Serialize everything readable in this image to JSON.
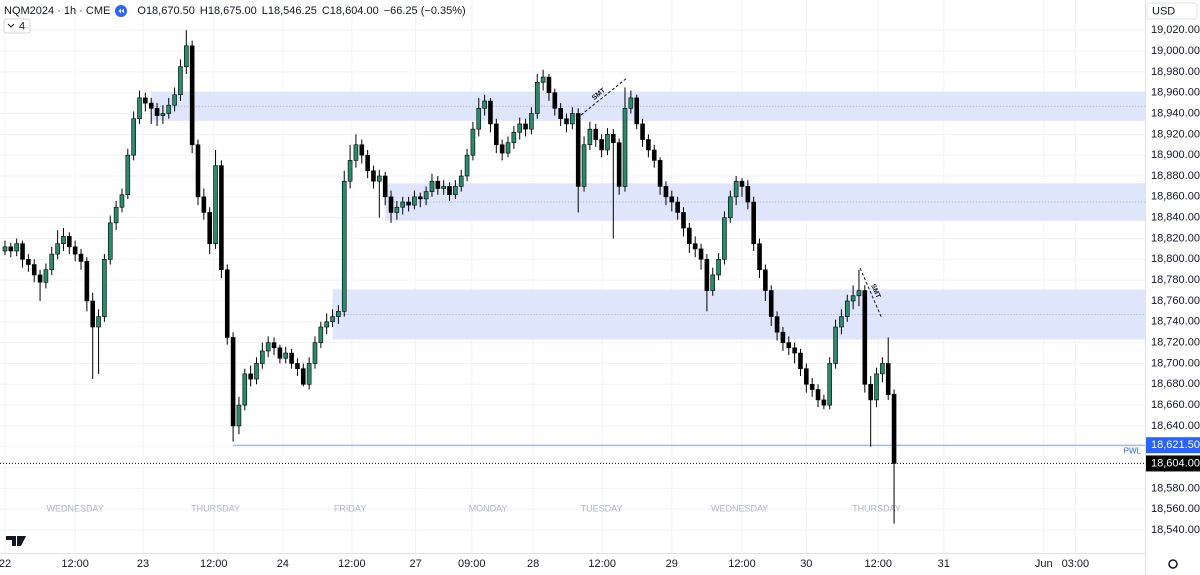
{
  "header": {
    "symbol": "NQM2024 · 1h · CME",
    "ohlc": [
      {
        "key": "O",
        "value": "18,670.50"
      },
      {
        "key": "H",
        "value": "18,675.00"
      },
      {
        "key": "L",
        "value": "18,546.25"
      },
      {
        "key": "C",
        "value": "18,604.00"
      }
    ],
    "change": "−66.25 (−0.35%)",
    "indicator_count": "4",
    "currency": "USD"
  },
  "chart_data": {
    "type": "candlestick",
    "up_color": "#2b8a6c",
    "down_color": "#000000",
    "grid": true,
    "x": [
      0,
      1,
      2,
      3,
      4,
      5,
      6,
      7,
      8,
      9,
      10,
      11,
      12,
      13,
      14,
      15,
      16,
      17,
      18,
      19,
      20,
      21,
      22,
      23,
      24,
      25,
      26,
      27,
      28,
      29,
      30,
      31,
      32,
      33,
      34,
      35,
      36,
      37,
      38,
      39,
      40,
      41,
      42,
      43,
      44,
      45,
      46,
      47,
      48,
      49,
      50,
      51,
      52,
      53,
      54,
      55,
      56,
      57,
      58,
      59,
      60,
      61,
      62,
      63,
      64,
      65,
      66,
      67,
      68,
      69,
      70,
      71,
      72,
      73,
      74,
      75,
      76,
      77,
      78,
      79,
      80,
      81,
      82,
      83,
      84,
      85,
      86,
      87,
      88,
      89,
      90,
      91,
      92,
      93,
      94,
      95,
      96,
      97,
      98,
      99,
      100,
      101,
      102,
      103,
      104,
      105,
      106,
      107,
      108,
      109,
      110,
      111,
      112,
      113,
      114,
      115,
      116,
      117,
      118,
      119,
      120,
      121,
      122,
      123,
      124,
      125,
      126,
      127,
      128,
      129,
      130,
      131,
      132,
      133,
      134,
      135,
      136,
      137,
      138,
      139,
      140,
      141,
      142,
      143,
      144,
      145,
      146,
      147,
      148,
      149,
      150,
      151,
      152
    ],
    "open": [
      18808,
      18812,
      18808,
      18815,
      18800,
      18795,
      18785,
      18778,
      18790,
      18805,
      18815,
      18822,
      18812,
      18805,
      18798,
      18760,
      18735,
      18745,
      18800,
      18835,
      18850,
      18862,
      18900,
      18935,
      18955,
      18950,
      18945,
      18938,
      18940,
      18948,
      18958,
      18985,
      19005,
      18910,
      18860,
      18845,
      18815,
      18890,
      18790,
      18725,
      18640,
      18660,
      18690,
      18685,
      18700,
      18712,
      18720,
      18715,
      18705,
      18710,
      18700,
      18695,
      18680,
      18700,
      18720,
      18735,
      18740,
      18745,
      18750,
      18875,
      18895,
      18910,
      18900,
      18885,
      18875,
      18880,
      18860,
      18845,
      18850,
      18855,
      18852,
      18860,
      18858,
      18865,
      18875,
      18868,
      18870,
      18862,
      18870,
      18880,
      18900,
      18925,
      18945,
      18952,
      18930,
      18910,
      18902,
      18912,
      18922,
      18930,
      18925,
      18940,
      18970,
      18975,
      18960,
      18945,
      18935,
      18930,
      18940,
      18870,
      18910,
      18925,
      18915,
      18905,
      18920,
      18912,
      18870,
      18945,
      18955,
      18930,
      18915,
      18905,
      18895,
      18870,
      18860,
      18855,
      18845,
      18830,
      18815,
      18810,
      18800,
      18770,
      18785,
      18800,
      18840,
      18860,
      18875,
      18870,
      18855,
      18815,
      18790,
      18770,
      18745,
      18730,
      18720,
      18715,
      18710,
      18695,
      18680,
      18675,
      18665,
      18660,
      18700,
      18735,
      18745,
      18760,
      18765,
      18770,
      18680,
      18665,
      18690,
      18700,
      18670.5
    ],
    "high": [
      18818,
      18816,
      18820,
      18818,
      18805,
      18800,
      18790,
      18796,
      18812,
      18828,
      18830,
      18826,
      18818,
      18810,
      18802,
      18768,
      18752,
      18805,
      18842,
      18856,
      18868,
      18906,
      18942,
      18962,
      18960,
      18955,
      18950,
      18948,
      18955,
      18965,
      18992,
      19020,
      19010,
      18915,
      18868,
      18850,
      18905,
      18895,
      18795,
      18730,
      18668,
      18695,
      18698,
      18706,
      18720,
      18726,
      18725,
      18718,
      18716,
      18714,
      18705,
      18700,
      18706,
      18726,
      18740,
      18748,
      18752,
      18756,
      18885,
      18910,
      18920,
      18915,
      18905,
      18890,
      18886,
      18884,
      18866,
      18856,
      18860,
      18860,
      18866,
      18864,
      18870,
      18882,
      18880,
      18876,
      18874,
      18876,
      18886,
      18906,
      18932,
      18955,
      18958,
      18955,
      18935,
      18915,
      18918,
      18928,
      18936,
      18935,
      18946,
      18978,
      18982,
      18978,
      18964,
      18950,
      18940,
      18946,
      18945,
      18918,
      18932,
      18930,
      18920,
      18926,
      18925,
      18916,
      18965,
      18962,
      18958,
      18935,
      18920,
      18910,
      18898,
      18875,
      18866,
      18860,
      18850,
      18835,
      18822,
      18815,
      18805,
      18792,
      18806,
      18846,
      18866,
      18880,
      18878,
      18876,
      18860,
      18820,
      18795,
      18775,
      18750,
      18735,
      18726,
      18720,
      18714,
      18700,
      18686,
      18680,
      18670,
      18706,
      18742,
      18752,
      18766,
      18775,
      18790,
      18775,
      18688,
      18696,
      18706,
      18725,
      18675
    ],
    "low": [
      18804,
      18802,
      18803,
      18792,
      18788,
      18778,
      18760,
      18772,
      18785,
      18800,
      18808,
      18805,
      18798,
      18790,
      18750,
      18685,
      18690,
      18740,
      18795,
      18828,
      18845,
      18858,
      18895,
      18930,
      18942,
      18930,
      18928,
      18930,
      18935,
      18942,
      18952,
      18978,
      18902,
      18852,
      18838,
      18805,
      18810,
      18782,
      18718,
      18625,
      18632,
      18655,
      18678,
      18680,
      18695,
      18706,
      18708,
      18700,
      18700,
      18695,
      18688,
      18678,
      18675,
      18695,
      18715,
      18728,
      18735,
      18738,
      18745,
      18868,
      18888,
      18892,
      18878,
      18868,
      18840,
      18852,
      18835,
      18838,
      18843,
      18846,
      18848,
      18850,
      18852,
      18860,
      18862,
      18862,
      18856,
      18858,
      18865,
      18875,
      18895,
      18918,
      18938,
      18922,
      18902,
      18895,
      18898,
      18906,
      18915,
      18918,
      18920,
      18935,
      18962,
      18952,
      18938,
      18928,
      18922,
      18925,
      18845,
      18865,
      18905,
      18908,
      18898,
      18900,
      18820,
      18862,
      18865,
      18940,
      18925,
      18908,
      18898,
      18888,
      18862,
      18852,
      18846,
      18838,
      18822,
      18806,
      18802,
      18790,
      18750,
      18765,
      18780,
      18795,
      18835,
      18852,
      18860,
      18848,
      18808,
      18782,
      18760,
      18736,
      18722,
      18712,
      18708,
      18700,
      18688,
      18672,
      18668,
      18658,
      18656,
      18656,
      18695,
      18728,
      18740,
      18752,
      18755,
      18672,
      18620,
      18658,
      18682,
      18665,
      18546.25
    ],
    "close": [
      18812,
      18808,
      18815,
      18800,
      18795,
      18785,
      18778,
      18790,
      18805,
      18815,
      18822,
      18812,
      18805,
      18798,
      18760,
      18735,
      18745,
      18800,
      18835,
      18850,
      18862,
      18900,
      18935,
      18955,
      18950,
      18945,
      18938,
      18940,
      18948,
      18958,
      18985,
      19005,
      18910,
      18860,
      18845,
      18815,
      18890,
      18790,
      18725,
      18640,
      18660,
      18690,
      18685,
      18700,
      18712,
      18720,
      18715,
      18705,
      18710,
      18700,
      18695,
      18680,
      18700,
      18720,
      18735,
      18740,
      18745,
      18750,
      18875,
      18895,
      18910,
      18900,
      18885,
      18875,
      18880,
      18860,
      18845,
      18850,
      18855,
      18852,
      18860,
      18858,
      18865,
      18875,
      18868,
      18870,
      18862,
      18870,
      18880,
      18900,
      18925,
      18945,
      18952,
      18930,
      18910,
      18902,
      18912,
      18922,
      18930,
      18925,
      18940,
      18970,
      18975,
      18960,
      18945,
      18935,
      18930,
      18940,
      18870,
      18910,
      18925,
      18915,
      18905,
      18920,
      18912,
      18870,
      18945,
      18955,
      18930,
      18915,
      18905,
      18895,
      18870,
      18860,
      18855,
      18845,
      18830,
      18815,
      18810,
      18800,
      18770,
      18785,
      18800,
      18840,
      18860,
      18875,
      18870,
      18855,
      18815,
      18790,
      18770,
      18745,
      18730,
      18720,
      18715,
      18710,
      18695,
      18680,
      18675,
      18665,
      18660,
      18700,
      18735,
      18745,
      18760,
      18765,
      18770,
      18680,
      18665,
      18690,
      18700,
      18670,
      18604
    ],
    "xlim": [
      -0.85,
      194.9
    ],
    "ylim": [
      18518,
      19049
    ],
    "xticks": [
      {
        "value": 0,
        "label": "22"
      },
      {
        "value": 12,
        "label": "12:00"
      },
      {
        "value": 23.6,
        "label": "23"
      },
      {
        "value": 35.7,
        "label": "12:00"
      },
      {
        "value": 47.5,
        "label": "24"
      },
      {
        "value": 59.3,
        "label": "12:00"
      },
      {
        "value": 70.2,
        "label": "27"
      },
      {
        "value": 79.8,
        "label": "09:00"
      },
      {
        "value": 90.3,
        "label": "28"
      },
      {
        "value": 102.1,
        "label": "12:00"
      },
      {
        "value": 114,
        "label": "29"
      },
      {
        "value": 126,
        "label": "12:00"
      },
      {
        "value": 137,
        "label": "30"
      },
      {
        "value": 149.3,
        "label": "12:00"
      },
      {
        "value": 160.5,
        "label": "31"
      },
      {
        "value": 177.6,
        "label": "Jun"
      },
      {
        "value": 183,
        "label": "03:00"
      }
    ],
    "yticks": [
      {
        "value": 18540,
        "label": "18,540.00"
      },
      {
        "value": 18560,
        "label": "18,560.00"
      },
      {
        "value": 18580,
        "label": "18,580.00"
      },
      {
        "value": 18600,
        "label": "18,600.00"
      },
      {
        "value": 18620,
        "label": "18,620.00"
      },
      {
        "value": 18640,
        "label": "18,640.00"
      },
      {
        "value": 18660,
        "label": "18,660.00"
      },
      {
        "value": 18680,
        "label": "18,680.00"
      },
      {
        "value": 18700,
        "label": "18,700.00"
      },
      {
        "value": 18720,
        "label": "18,720.00"
      },
      {
        "value": 18740,
        "label": "18,740.00"
      },
      {
        "value": 18760,
        "label": "18,760.00"
      },
      {
        "value": 18780,
        "label": "18,780.00"
      },
      {
        "value": 18800,
        "label": "18,800.00"
      },
      {
        "value": 18820,
        "label": "18,820.00"
      },
      {
        "value": 18840,
        "label": "18,840.00"
      },
      {
        "value": 18860,
        "label": "18,860.00"
      },
      {
        "value": 18880,
        "label": "18,880.00"
      },
      {
        "value": 18900,
        "label": "18,900.00"
      },
      {
        "value": 18920,
        "label": "18,920.00"
      },
      {
        "value": 18940,
        "label": "18,940.00"
      },
      {
        "value": 18960,
        "label": "18,960.00"
      },
      {
        "value": 18980,
        "label": "18,980.00"
      },
      {
        "value": 19000,
        "label": "19,000.00"
      },
      {
        "value": 19020,
        "label": "19,020.00"
      }
    ],
    "zones": [
      {
        "x0": 25,
        "top": 18961,
        "bottom": 18933,
        "color": "#dfe6fb"
      },
      {
        "x0": 65,
        "top": 18873,
        "bottom": 18837,
        "color": "#dfe6fb"
      },
      {
        "x0": 56,
        "top": 18771,
        "bottom": 18723,
        "color": "#dfe6fb"
      }
    ],
    "levels": [
      {
        "name": "PWL",
        "x0": 39,
        "value": 18621.5,
        "label": "18,621.50",
        "color": "#2962ff"
      }
    ],
    "last_price": {
      "value": 18604,
      "label": "18,604.00",
      "color": "#000000"
    },
    "day_labels": [
      {
        "x": 12,
        "label": "WEDNESDAY"
      },
      {
        "x": 36,
        "label": "THURSDAY"
      },
      {
        "x": 59,
        "label": "FRIDAY"
      },
      {
        "x": 82.6,
        "label": "MONDAY"
      },
      {
        "x": 102,
        "label": "TUESDAY"
      },
      {
        "x": 125.6,
        "label": "WEDNESDAY"
      },
      {
        "x": 149,
        "label": "THURSDAY"
      }
    ],
    "annotations": [
      {
        "label": "SMT",
        "x": [
          97.8,
          106.3
        ],
        "y": [
          18935.5,
          18974
        ]
      },
      {
        "label": "SMT",
        "x": [
          146.2,
          149.9
        ],
        "y": [
          18791.5,
          18743.5
        ]
      }
    ]
  }
}
